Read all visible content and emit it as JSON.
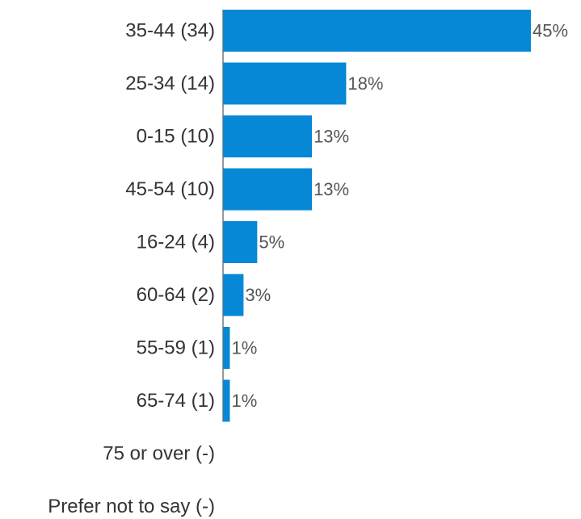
{
  "chart_data": {
    "type": "bar",
    "orientation": "horizontal",
    "categories": [
      "35-44 (34)",
      "25-34 (14)",
      "0-15   (10)",
      "45-54 (10)",
      "16-24 (4)",
      "60-64 (2)",
      "55-59 (1)",
      "65-74 (1)",
      "75 or over  (-)",
      "Prefer not to say (-)"
    ],
    "values": [
      45,
      18,
      13,
      13,
      5,
      3,
      1,
      1,
      null,
      null
    ],
    "value_labels": [
      "45%",
      "18%",
      "13%",
      "13%",
      "5%",
      "3%",
      "1%",
      "1%",
      "",
      ""
    ],
    "xlim": [
      0,
      45
    ],
    "grid": false,
    "legend": "none",
    "bar_color": "#0788d6",
    "axis_line_color": "#333333"
  }
}
